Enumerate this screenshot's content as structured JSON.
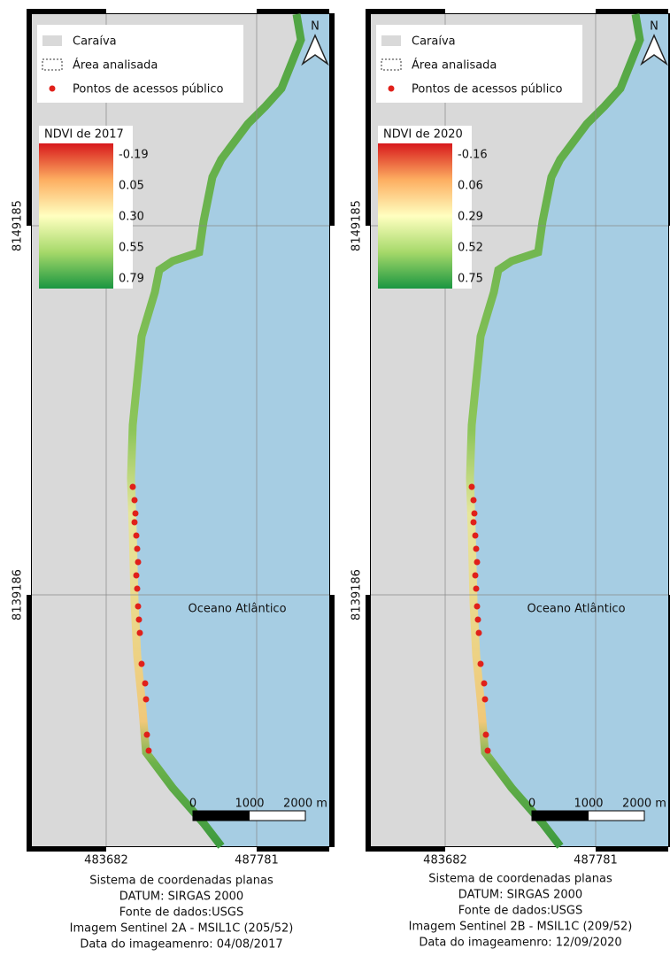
{
  "maps": [
    {
      "legend": {
        "items": [
          "Caraíva",
          "Área analisada",
          "Pontos de acessos público"
        ]
      },
      "ndvi": {
        "title": "NDVI de 2017",
        "labels": [
          "-0.19",
          "0.05",
          "0.30",
          "0.55",
          "0.79"
        ]
      },
      "north": "N",
      "grid_y_labels": [
        "8149185",
        "8139186"
      ],
      "grid_x_labels": [
        "483682",
        "487781"
      ],
      "ocean": "Oceano Atlântico",
      "scale_labels": [
        "0",
        "1000",
        "2000 m"
      ],
      "caption": [
        "Sistema de coordenadas planas",
        "DATUM: SIRGAS 2000",
        "Fonte de dados:USGS",
        "Imagem Sentinel 2A - MSIL1C (205/52)",
        "Data do imageamenro: 04/08/2017"
      ]
    },
    {
      "legend": {
        "items": [
          "Caraíva",
          "Área analisada",
          "Pontos de acessos público"
        ]
      },
      "ndvi": {
        "title": "NDVI de 2020",
        "labels": [
          "-0.16",
          "0.06",
          "0.29",
          "0.52",
          "0.75"
        ]
      },
      "north": "N",
      "grid_y_labels": [
        "8149185",
        "8139186"
      ],
      "grid_x_labels": [
        "483682",
        "487781"
      ],
      "ocean": "Oceano Atlântico",
      "scale_labels": [
        "0",
        "1000",
        "2000 m"
      ],
      "caption": [
        "Sistema de coordenadas planas",
        "DATUM: SIRGAS 2000",
        "Fonte de dados:USGS",
        "Imagem Sentinel 2B - MSIL1C (209/52)",
        "Data do imageamenro: 12/09/2020"
      ]
    }
  ]
}
